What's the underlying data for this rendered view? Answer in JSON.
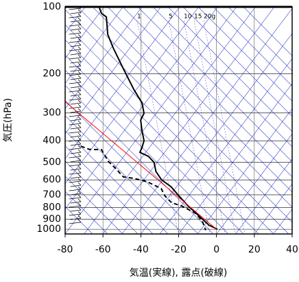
{
  "chart_data": {
    "type": "skew-t",
    "ylabel": "気圧(hPa)",
    "xlabel": "気温(実線), 露点(破線)",
    "xlim": [
      -80,
      40
    ],
    "xticks": [
      -80,
      -60,
      -40,
      -20,
      0,
      20,
      40
    ],
    "ylim": [
      1050,
      100
    ],
    "log_y": true,
    "yticks": [
      100,
      200,
      300,
      400,
      500,
      600,
      700,
      800,
      900,
      1000
    ],
    "grid": true,
    "mixing_ratio_labels": [
      "1",
      "5",
      "10",
      "15",
      "20g"
    ],
    "series": [
      {
        "color": "#000000",
        "dash": false,
        "y": [
          101,
          107,
          111,
          133,
          153,
          190,
          235,
          270,
          301,
          323,
          359,
          400,
          430,
          451,
          470,
          500,
          550,
          600,
          644,
          706,
          786,
          874,
          958,
          1000
        ],
        "values": [
          -61.9,
          -60.8,
          -58.2,
          -57.5,
          -54.6,
          -49.2,
          -43.7,
          -39.4,
          -38.3,
          -40.1,
          -39.4,
          -38.3,
          -39.4,
          -40.5,
          -36,
          -33,
          -32,
          -29,
          -24,
          -20,
          -15,
          -9,
          -4,
          0.5
        ]
      },
      {
        "color": "#000000",
        "dash": true,
        "y": [
          423,
          437,
          439,
          495,
          531,
          582,
          590,
          612,
          656,
          706,
          759,
          786,
          846,
          918,
          1010
        ],
        "values": [
          -71.7,
          -67.3,
          -60.8,
          -57.2,
          -53.5,
          -49.2,
          -43.7,
          -36.5,
          -29.2,
          -27.4,
          -23.8,
          -18.4,
          -11.1,
          -7.5,
          -5.7
        ]
      },
      {
        "color": "#ff0000",
        "dash": false,
        "y": [
          1000,
          267
        ],
        "values": [
          0,
          -80
        ]
      }
    ]
  }
}
